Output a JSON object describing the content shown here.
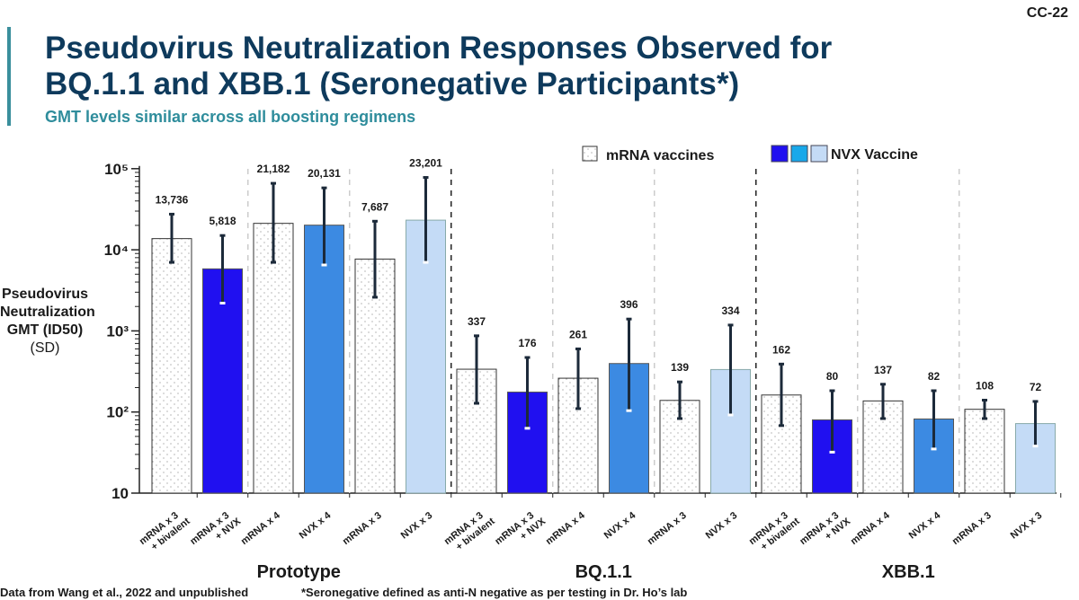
{
  "slide_number": "CC-22",
  "title_line1": "Pseudovirus Neutralization Responses Observed for",
  "title_line2": "BQ.1.1 and XBB.1 (Seronegative Participants*)",
  "subtitle": "GMT levels similar across all boosting regimens",
  "footnote_left": "Data from Wang et al., 2022 and unpublished",
  "footnote_right": "*Seronegative defined as anti-N negative as per testing in Dr. Ho’s lab",
  "colors": {
    "nvx_dark": "#2010f0",
    "nvx_mid": "#3c8ae2",
    "nvx_light": "#c4dbf6",
    "legend_cyan": "#18a8ea",
    "text": "#1a1a1a"
  },
  "chart_data": {
    "type": "bar",
    "yscale": "log",
    "ylim": [
      10,
      100000
    ],
    "yticks": [
      "10",
      "10²",
      "10³",
      "10⁴",
      "10⁵"
    ],
    "ylabel_lines": [
      "Pseudovirus",
      "Neutralization",
      "GMT (ID50)",
      "(SD)"
    ],
    "legend": {
      "mrna": "mRNA vaccines",
      "nvx": "NVX Vaccine",
      "placement": "top-right"
    },
    "groups": [
      "Prototype",
      "BQ.1.1",
      "XBB.1"
    ],
    "bars": [
      {
        "group": 0,
        "label": [
          "mRNA x 3",
          "+ bivalent"
        ],
        "type": "mrna",
        "value": 13736,
        "text": "13,736",
        "err": [
          7000,
          27500
        ]
      },
      {
        "group": 0,
        "label": [
          "mRNA x 3",
          "+ NVX"
        ],
        "type": "nvx_dark",
        "value": 5818,
        "text": "5,818",
        "err": [
          2200,
          15000
        ]
      },
      {
        "group": 0,
        "label": [
          "mRNA x 4"
        ],
        "type": "mrna",
        "value": 21182,
        "text": "21,182",
        "err": [
          7000,
          66000
        ]
      },
      {
        "group": 0,
        "label": [
          "NVX x 4"
        ],
        "type": "nvx_mid",
        "value": 20131,
        "text": "20,131",
        "err": [
          6500,
          58000
        ]
      },
      {
        "group": 0,
        "label": [
          "mRNA x 3"
        ],
        "type": "mrna",
        "value": 7687,
        "text": "7,687",
        "err": [
          2600,
          22500
        ]
      },
      {
        "group": 0,
        "label": [
          "NVX x 3"
        ],
        "type": "nvx_light",
        "value": 23201,
        "text": "23,201",
        "err": [
          7000,
          78000
        ]
      },
      {
        "group": 1,
        "label": [
          "mRNA x 3",
          "+ bivalent"
        ],
        "type": "mrna",
        "value": 337,
        "text": "337",
        "err": [
          128,
          870
        ]
      },
      {
        "group": 1,
        "label": [
          "mRNA x 3",
          "+ NVX"
        ],
        "type": "nvx_dark",
        "value": 176,
        "text": "176",
        "err": [
          63,
          470
        ]
      },
      {
        "group": 1,
        "label": [
          "mRNA x 4"
        ],
        "type": "mrna",
        "value": 261,
        "text": "261",
        "err": [
          110,
          600
        ]
      },
      {
        "group": 1,
        "label": [
          "NVX x 4"
        ],
        "type": "nvx_mid",
        "value": 396,
        "text": "396",
        "err": [
          104,
          1400
        ]
      },
      {
        "group": 1,
        "label": [
          "mRNA x 3"
        ],
        "type": "mrna",
        "value": 139,
        "text": "139",
        "err": [
          83,
          235
        ]
      },
      {
        "group": 1,
        "label": [
          "NVX x 3"
        ],
        "type": "nvx_light",
        "value": 334,
        "text": "334",
        "err": [
          92,
          1180
        ]
      },
      {
        "group": 2,
        "label": [
          "mRNA x 3",
          "+ bivalent"
        ],
        "type": "mrna",
        "value": 162,
        "text": "162",
        "err": [
          68,
          390
        ]
      },
      {
        "group": 2,
        "label": [
          "mRNA x 3",
          "+ NVX"
        ],
        "type": "nvx_dark",
        "value": 80,
        "text": "80",
        "err": [
          32,
          183
        ]
      },
      {
        "group": 2,
        "label": [
          "mRNA x 4"
        ],
        "type": "mrna",
        "value": 137,
        "text": "137",
        "err": [
          83,
          220
        ]
      },
      {
        "group": 2,
        "label": [
          "NVX x 4"
        ],
        "type": "nvx_mid",
        "value": 82,
        "text": "82",
        "err": [
          35,
          183
        ]
      },
      {
        "group": 2,
        "label": [
          "mRNA x 3"
        ],
        "type": "mrna",
        "value": 108,
        "text": "108",
        "err": [
          83,
          140
        ]
      },
      {
        "group": 2,
        "label": [
          "NVX x 3"
        ],
        "type": "nvx_light",
        "value": 72,
        "text": "72",
        "err": [
          38,
          135
        ]
      }
    ]
  }
}
